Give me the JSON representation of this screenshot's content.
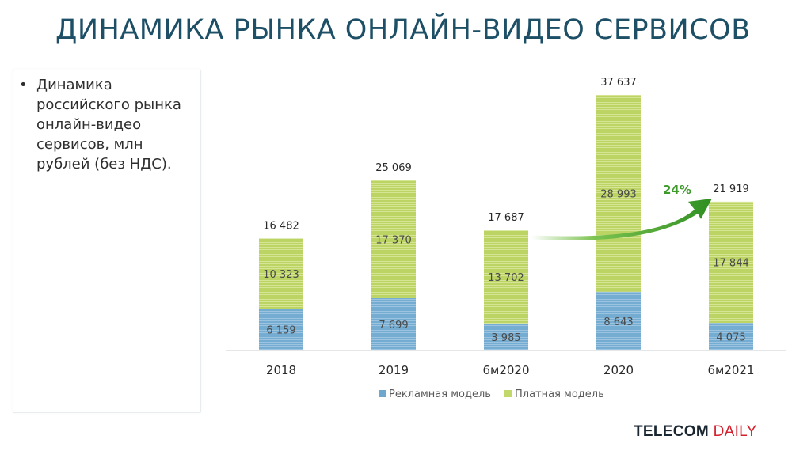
{
  "slide": {
    "title": "ДИНАМИКА РЫНКА ОНЛАЙН-ВИДЕО СЕРВИСОВ",
    "bullet": "Динамика российского рынка онлайн-видео сервисов, млн рублей (без НДС).",
    "brand_part1": "TELECOM",
    "brand_part2": "DAILY"
  },
  "chart_data": {
    "type": "bar",
    "stacked": true,
    "categories": [
      "2018",
      "2019",
      "6м2020",
      "2020",
      "6м2021"
    ],
    "series": [
      {
        "name": "Рекламная модель",
        "values": [
          6159,
          7699,
          3985,
          8643,
          4075
        ],
        "labels": [
          "6 159",
          "7 699",
          "3 985",
          "8 643",
          "4 075"
        ],
        "color": "#6fa8cf"
      },
      {
        "name": "Платная модель",
        "values": [
          10323,
          17370,
          13702,
          28993,
          17844
        ],
        "labels": [
          "10 323",
          "17 370",
          "13 702",
          "28 993",
          "17 844"
        ],
        "color": "#c2d86a"
      }
    ],
    "totals": [
      16482,
      25069,
      17687,
      37637,
      21919
    ],
    "total_labels": [
      "16 482",
      "25 069",
      "17 687",
      "37 637",
      "21 919"
    ],
    "annotation": {
      "text": "24%",
      "from": "6м2020",
      "to": "6м2021",
      "color": "#3e9a2a"
    },
    "legend": "bottom",
    "grid": false,
    "ylim": [
      0,
      37637
    ]
  }
}
